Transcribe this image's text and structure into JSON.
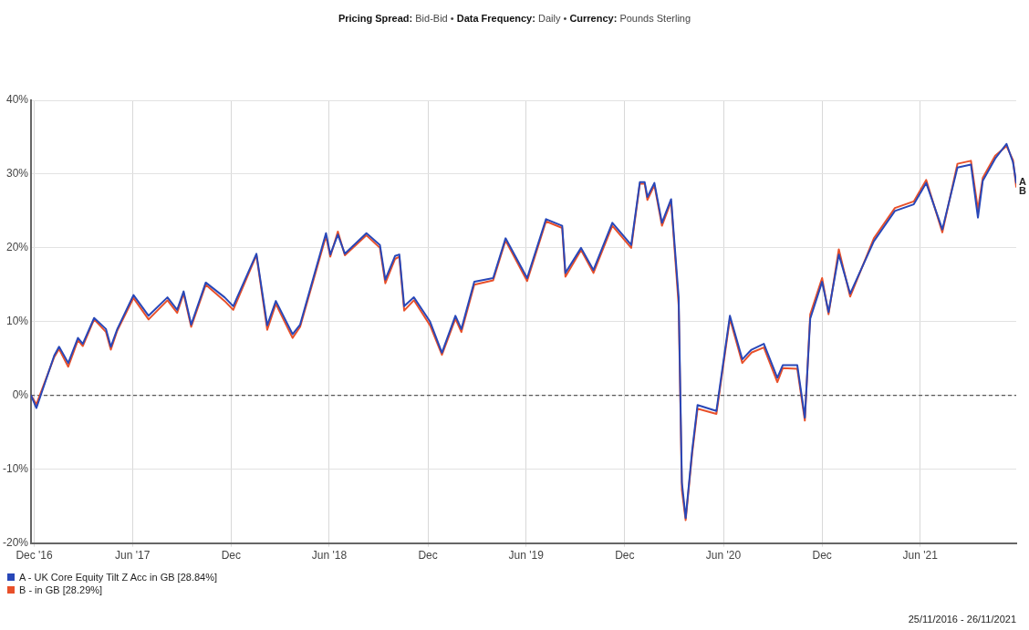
{
  "chart_data": {
    "type": "line",
    "subtitle": "Pricing Spread: Bid-Bid • Data Frequency: Daily • Currency: Pounds Sterling",
    "x": [
      "2016-11-25",
      "2016-12-05",
      "2017-01-07",
      "2017-01-16",
      "2017-02-02",
      "2017-02-20",
      "2017-03-01",
      "2017-03-22",
      "2017-04-13",
      "2017-04-22",
      "2017-05-04",
      "2017-06-03",
      "2017-07-01",
      "2017-08-05",
      "2017-08-23",
      "2017-09-04",
      "2017-09-18",
      "2017-10-15",
      "2017-11-19",
      "2017-12-05",
      "2018-01-17",
      "2018-02-06",
      "2018-02-22",
      "2018-03-25",
      "2018-04-08",
      "2018-05-26",
      "2018-06-03",
      "2018-06-17",
      "2018-06-30",
      "2018-08-09",
      "2018-09-03",
      "2018-09-13",
      "2018-10-01",
      "2018-10-09",
      "2018-10-18",
      "2018-11-05",
      "2018-12-05",
      "2018-12-27",
      "2019-01-21",
      "2019-02-01",
      "2019-02-25",
      "2019-04-01",
      "2019-04-24",
      "2019-06-03",
      "2019-07-08",
      "2019-08-07",
      "2019-08-13",
      "2019-09-11",
      "2019-10-04",
      "2019-11-08",
      "2019-12-13",
      "2019-12-29",
      "2020-01-07",
      "2020-01-12",
      "2020-01-25",
      "2020-02-08",
      "2020-02-25",
      "2020-03-10",
      "2020-03-16",
      "2020-03-23",
      "2020-04-04",
      "2020-04-14",
      "2020-05-19",
      "2020-06-13",
      "2020-07-06",
      "2020-07-23",
      "2020-08-15",
      "2020-09-09",
      "2020-09-19",
      "2020-10-16",
      "2020-10-30",
      "2020-11-09",
      "2020-12-01",
      "2020-12-13",
      "2021-01-01",
      "2021-01-22",
      "2021-03-07",
      "2021-04-15",
      "2021-05-20",
      "2021-06-12",
      "2021-07-12",
      "2021-08-09",
      "2021-09-03",
      "2021-09-16",
      "2021-09-25",
      "2021-10-18",
      "2021-11-08",
      "2021-11-20",
      "2021-11-26"
    ],
    "series": [
      {
        "name": "A - UK Core Equity Tilt Z Acc in GB [28.84%]",
        "color": "#2847b8",
        "values": [
          0,
          -1.7,
          5.4,
          6.6,
          4.4,
          7.8,
          7,
          10.5,
          9,
          6.6,
          9,
          13.6,
          10.8,
          13.3,
          11.6,
          14.1,
          9.6,
          15.3,
          13.3,
          12.1,
          19.2,
          9.5,
          12.8,
          8.3,
          9.6,
          22,
          19.1,
          21.8,
          19.2,
          22,
          20.4,
          15.7,
          18.9,
          19.1,
          12.1,
          13.3,
          10,
          5.8,
          10.8,
          9,
          15.4,
          15.9,
          21.3,
          15.9,
          23.9,
          23,
          16.6,
          20,
          17,
          23.4,
          20.4,
          28.9,
          28.9,
          26.9,
          28.8,
          23.4,
          26.6,
          13.3,
          -11.8,
          -16.6,
          -7.5,
          -1.3,
          -2.1,
          10.8,
          4.9,
          6.2,
          7,
          2.4,
          4.1,
          4.1,
          -3,
          10.4,
          15.4,
          11.3,
          19.1,
          13.8,
          20.9,
          25,
          25.9,
          28.8,
          22.5,
          30.9,
          31.3,
          24.1,
          29.1,
          32.1,
          34.1,
          31.6,
          28.84
        ]
      },
      {
        "name": "B - in GB [28.29%]",
        "color": "#e8502a",
        "values": [
          0,
          -1.2,
          5.2,
          6.3,
          3.9,
          7.5,
          6.7,
          10.3,
          8.6,
          6.2,
          8.8,
          13.2,
          10.3,
          12.9,
          11.2,
          13.8,
          9.3,
          15,
          12.8,
          11.6,
          19,
          8.9,
          12.4,
          7.8,
          9.3,
          21.6,
          18.8,
          22.2,
          19,
          21.7,
          20,
          15.2,
          18.5,
          18.8,
          11.5,
          12.9,
          9.5,
          5.5,
          10.4,
          8.6,
          15,
          15.6,
          21,
          15.5,
          23.6,
          22.7,
          16.1,
          19.7,
          16.6,
          23,
          20,
          28.7,
          28.7,
          26.5,
          28.5,
          23,
          26.3,
          12.2,
          -12.8,
          -16.9,
          -7.9,
          -1.8,
          -2.5,
          10.4,
          4.4,
          5.8,
          6.5,
          1.8,
          3.7,
          3.6,
          -3.4,
          11,
          15.9,
          11,
          19.8,
          13.4,
          21.3,
          25.4,
          26.3,
          29.2,
          22.1,
          31.4,
          31.8,
          25.2,
          29.5,
          32.5,
          33.8,
          31.9,
          28.29
        ]
      }
    ],
    "xlim": [
      "2016-11-25",
      "2021-11-26"
    ],
    "xticks": [
      {
        "value": "2016-12-01",
        "label": "Dec '16"
      },
      {
        "value": "2017-06-01",
        "label": "Jun '17"
      },
      {
        "value": "2017-12-01",
        "label": "Dec"
      },
      {
        "value": "2018-06-01",
        "label": "Jun '18"
      },
      {
        "value": "2018-12-01",
        "label": "Dec"
      },
      {
        "value": "2019-06-01",
        "label": "Jun '19"
      },
      {
        "value": "2019-12-01",
        "label": "Dec"
      },
      {
        "value": "2020-06-01",
        "label": "Jun '20"
      },
      {
        "value": "2020-12-01",
        "label": "Dec"
      },
      {
        "value": "2021-06-01",
        "label": "Jun '21"
      }
    ],
    "ylim": [
      -20,
      40
    ],
    "yticks": [
      {
        "value": -20,
        "label": "-20%"
      },
      {
        "value": -10,
        "label": "-10%"
      },
      {
        "value": 0,
        "label": "0%"
      },
      {
        "value": 10,
        "label": "10%"
      },
      {
        "value": 20,
        "label": "20%"
      },
      {
        "value": 30,
        "label": "30%"
      },
      {
        "value": 40,
        "label": "40%"
      }
    ],
    "grid": true,
    "legend": "bottom left",
    "marker": "none",
    "line_style": "solid",
    "ref_lines": [
      {
        "axis": "y",
        "value": 0,
        "color": "#333333",
        "line_style": "dashed"
      }
    ],
    "annotations": [
      {
        "text": "A",
        "x": "2021-11-26",
        "y": 28.84
      },
      {
        "text": "B",
        "x": "2021-11-26",
        "y": 28.29
      },
      "25/11/2016 - 26/11/2021"
    ]
  }
}
